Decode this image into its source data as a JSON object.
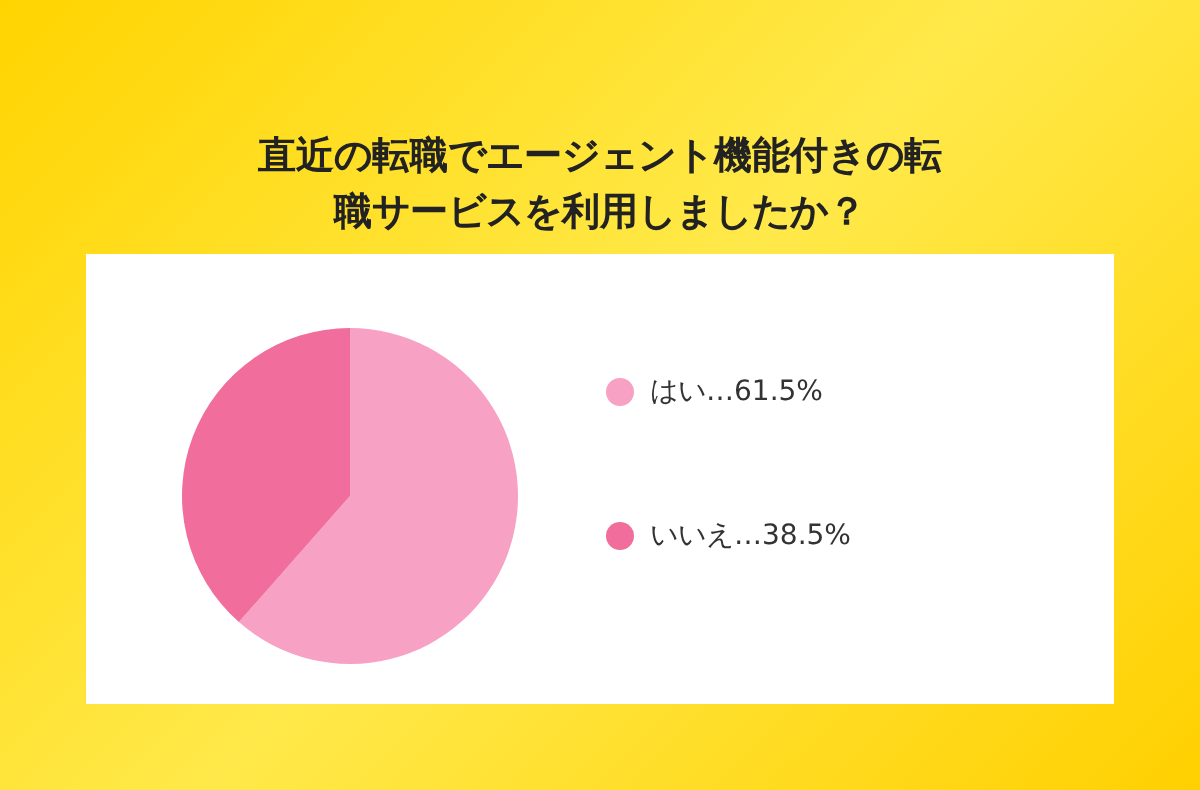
{
  "chart_data": {
    "type": "pie",
    "title": "直近の転職でエージェント機能付きの転職サービスを利用しましたか？",
    "categories": [
      "はい",
      "いいえ"
    ],
    "values": [
      61.5,
      38.5
    ],
    "value_labels": [
      "…61.5%",
      "…38.5%"
    ],
    "colors": [
      "#f7a1c4",
      "#f06d9c"
    ],
    "legend": "right"
  }
}
